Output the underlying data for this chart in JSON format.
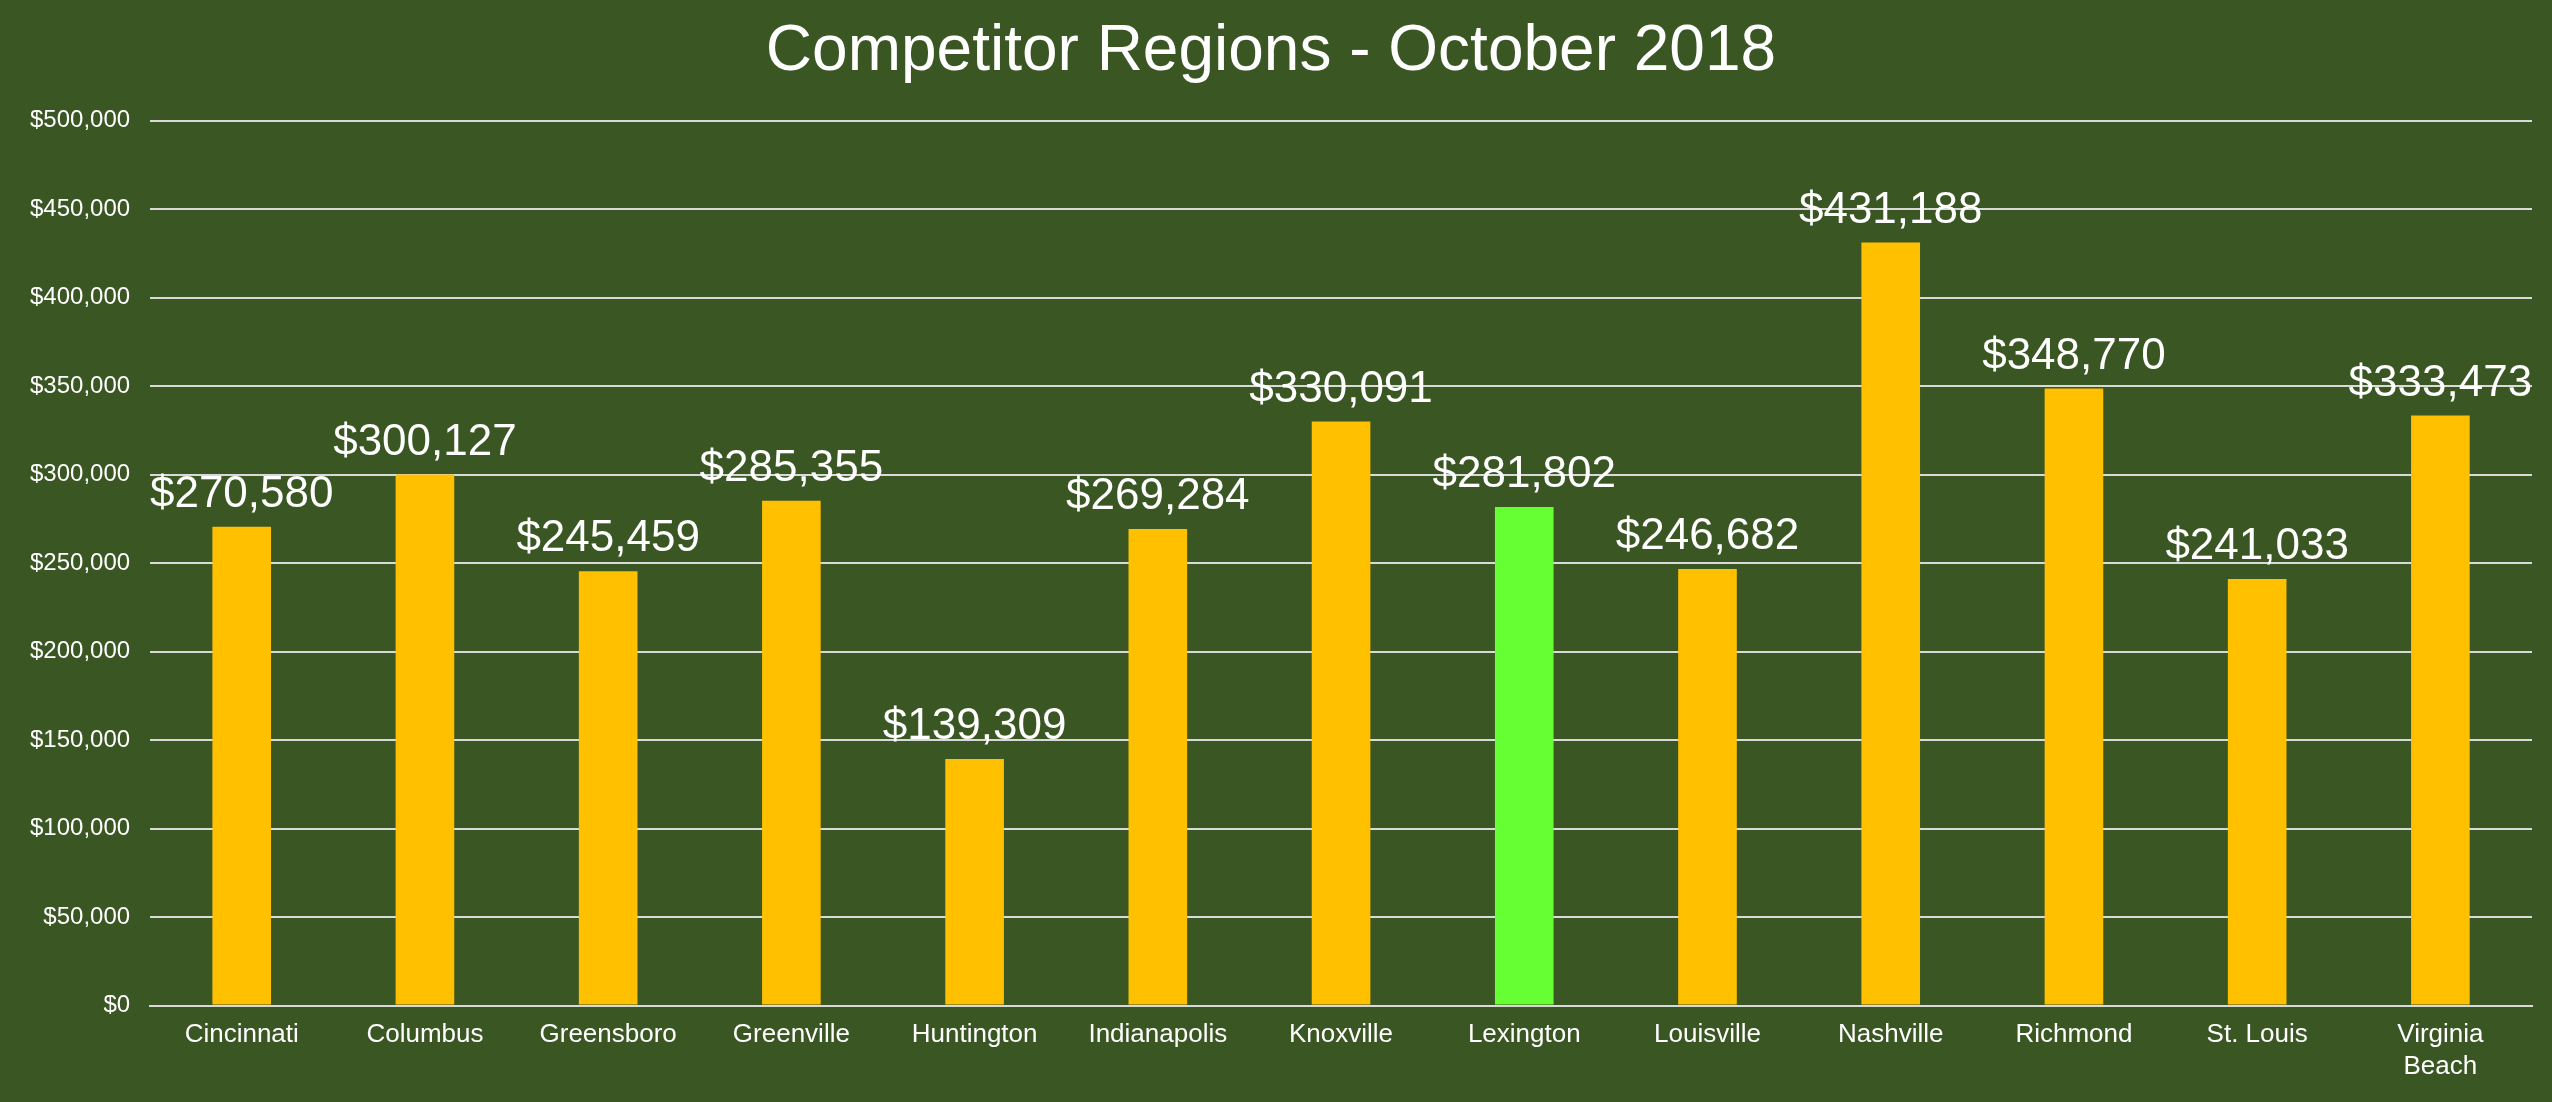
{
  "chart_data": {
    "type": "bar",
    "title": "Competitor Regions - October 2018",
    "categories": [
      "Cincinnati",
      "Columbus",
      "Greensboro",
      "Greenville",
      "Huntington",
      "Indianapolis",
      "Knoxville",
      "Lexington",
      "Louisville",
      "Nashville",
      "Richmond",
      "St. Louis",
      "Virginia Beach"
    ],
    "values": [
      270580,
      300127,
      245459,
      285355,
      139309,
      269284,
      330091,
      281802,
      246682,
      431188,
      348770,
      241033,
      333473
    ],
    "colors": [
      "#ffc000",
      "#ffc000",
      "#ffc000",
      "#ffc000",
      "#ffc000",
      "#ffc000",
      "#ffc000",
      "#66ff33",
      "#ffc000",
      "#ffc000",
      "#ffc000",
      "#ffc000",
      "#ffc000"
    ],
    "value_labels": [
      "$270,580",
      "$300,127",
      "$245,459",
      "$285,355",
      "$139,309",
      "$269,284",
      "$330,091",
      "$281,802",
      "$246,682",
      "$431,188",
      "$348,770",
      "$241,033",
      "$333,473"
    ],
    "ylim": [
      0,
      500000
    ],
    "yticks": [
      {
        "value": 0,
        "label": "$0"
      },
      {
        "value": 50000,
        "label": "$50,000"
      },
      {
        "value": 100000,
        "label": "$100,000"
      },
      {
        "value": 150000,
        "label": "$150,000"
      },
      {
        "value": 200000,
        "label": "$200,000"
      },
      {
        "value": 250000,
        "label": "$250,000"
      },
      {
        "value": 300000,
        "label": "$300,000"
      },
      {
        "value": 350000,
        "label": "$350,000"
      },
      {
        "value": 400000,
        "label": "$400,000"
      },
      {
        "value": 450000,
        "label": "$450,000"
      },
      {
        "value": 500000,
        "label": "$500,000"
      }
    ],
    "grid": "y",
    "legend": false
  }
}
